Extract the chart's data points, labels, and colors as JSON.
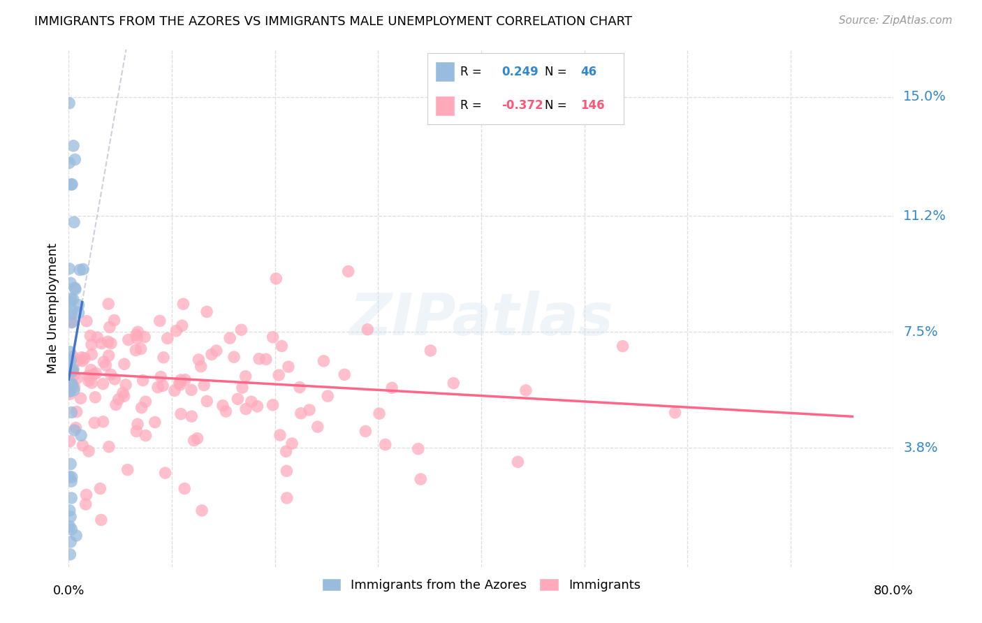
{
  "title": "IMMIGRANTS FROM THE AZORES VS IMMIGRANTS MALE UNEMPLOYMENT CORRELATION CHART",
  "source": "Source: ZipAtlas.com",
  "ylabel": "Male Unemployment",
  "ytick_vals": [
    0.15,
    0.112,
    0.075,
    0.038
  ],
  "ytick_labels": [
    "15.0%",
    "11.2%",
    "7.5%",
    "3.8%"
  ],
  "xlim": [
    0.0,
    0.8
  ],
  "ylim": [
    0.0,
    0.165
  ],
  "color_blue": "#99BBDD",
  "color_pink": "#FFAABB",
  "color_blue_line": "#4477CC",
  "color_pink_line": "#FF6688",
  "color_blue_text": "#3388CC",
  "color_pink_text": "#FF5577",
  "color_gray_dash": "#BBBBCC",
  "watermark": "ZIPatlas",
  "label1": "Immigrants from the Azores",
  "label2": "Immigrants",
  "legend_r1": "0.249",
  "legend_n1": "46",
  "legend_r2": "-0.372",
  "legend_n2": "146"
}
